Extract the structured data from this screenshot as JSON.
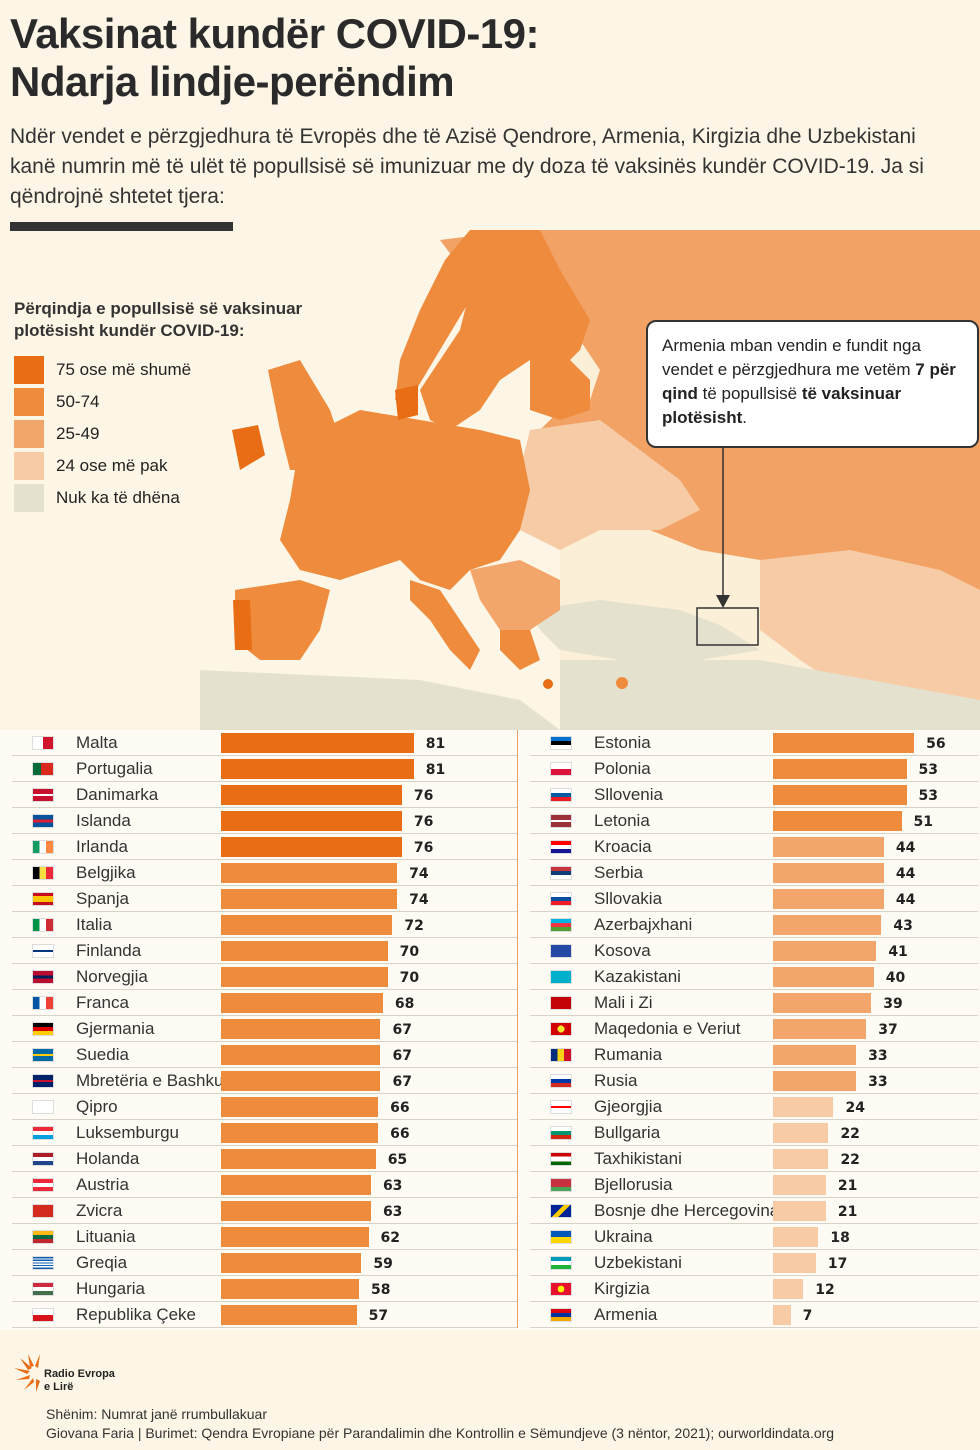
{
  "title_line1": "Vaksinat kundër COVID-19:",
  "title_line2": "Ndarja lindje-perëndim",
  "subtitle": "Ndër vendet e përzgjedhura të Evropës dhe të Azisë Qendrore, Armenia, Kirgizia dhe Uzbekistani kanë numrin më të ulët të popullsisë së imunizuar me dy doza të vaksinës kundër COVID-19. Ja si qëndrojnë shtetet tjera:",
  "legend": {
    "title": "Përqindja e popullsisë së vaksinuar plotësisht kundër COVID-19:",
    "items": [
      {
        "label": "75 ose më shumë",
        "color": "#e96d14"
      },
      {
        "label": "50-74",
        "color": "#ef8b3c"
      },
      {
        "label": "25-49",
        "color": "#f3a66b"
      },
      {
        "label": "24 ose më pak",
        "color": "#f7cba6"
      },
      {
        "label": "Nuk ka të dhëna",
        "color": "#e4e2cf"
      }
    ]
  },
  "callout": {
    "part1": "Armenia mban vendin e fundit nga vendet e përzgjedhura me vetëm ",
    "bold1": "7 për qind",
    "part2": " të popullsisë ",
    "bold2": "të vaksinuar plotësisht",
    "part3": "."
  },
  "chart_data": {
    "type": "bar",
    "title": "Përqindja e popullsisë së vaksinuar plotësisht kundër COVID-19",
    "unit": "%",
    "xlim": [
      0,
      100
    ],
    "categories": [
      "Malta",
      "Portugalia",
      "Danimarka",
      "Islanda",
      "Irlanda",
      "Belgjika",
      "Spanja",
      "Italia",
      "Finlanda",
      "Norvegjia",
      "Franca",
      "Gjermania",
      "Suedia",
      "Mbretëria e Bashkuar",
      "Qipro",
      "Luksemburgu",
      "Holanda",
      "Austria",
      "Zvicra",
      "Lituania",
      "Greqia",
      "Hungaria",
      "Republika Çeke",
      "Estonia",
      "Polonia",
      "Sllovenia",
      "Letonia",
      "Kroacia",
      "Serbia",
      "Sllovakia",
      "Azerbajxhani",
      "Kosova",
      "Kazakistani",
      "Mali i Zi",
      "Maqedonia e Veriut",
      "Rumania",
      "Rusia",
      "Gjeorgjia",
      "Bullgaria",
      "Taxhikistani",
      "Bjellorusia",
      "Bosnje dhe Hercegovina",
      "Ukraina",
      "Uzbekistani",
      "Kirgizia",
      "Armenia"
    ],
    "values": [
      81,
      81,
      76,
      76,
      76,
      74,
      74,
      72,
      70,
      70,
      68,
      67,
      67,
      67,
      66,
      66,
      65,
      63,
      63,
      62,
      59,
      58,
      57,
      56,
      53,
      53,
      51,
      44,
      44,
      44,
      43,
      41,
      40,
      39,
      37,
      33,
      33,
      24,
      22,
      22,
      21,
      21,
      18,
      17,
      12,
      7
    ],
    "flags": [
      "malta-flag",
      "portugal-flag",
      "denmark-flag",
      "iceland-flag",
      "ireland-flag",
      "belgium-flag",
      "spain-flag",
      "italy-flag",
      "finland-flag",
      "norway-flag",
      "france-flag",
      "germany-flag",
      "sweden-flag",
      "uk-flag",
      "cyprus-flag",
      "luxembourg-flag",
      "netherlands-flag",
      "austria-flag",
      "switzerland-flag",
      "lithuania-flag",
      "greece-flag",
      "hungary-flag",
      "czechia-flag",
      "estonia-flag",
      "poland-flag",
      "slovenia-flag",
      "latvia-flag",
      "croatia-flag",
      "serbia-flag",
      "slovakia-flag",
      "azerbaijan-flag",
      "kosovo-flag",
      "kazakhstan-flag",
      "montenegro-flag",
      "north-macedonia-flag",
      "romania-flag",
      "russia-flag",
      "georgia-flag",
      "bulgaria-flag",
      "tajikistan-flag",
      "belarus-flag",
      "bosnia-flag",
      "ukraine-flag",
      "uzbekistan-flag",
      "kyrgyzstan-flag",
      "armenia-flag"
    ]
  },
  "colors": {
    "c75": "#e96d14",
    "c50": "#ef8b3c",
    "c25": "#f3a66b",
    "c0": "#f7cba6",
    "nodata": "#e4e2cf"
  },
  "logo": {
    "line1": "Radio Evropa",
    "line2": "e Lirë"
  },
  "note": "Shënim: Numrat janë rrumbullakuar",
  "source": "Giovana Faria | Burimet: Qendra Evropiane për Parandalimin dhe Kontrollin e Sëmundjeve (3 nëntor, 2021); ourworldindata.org"
}
